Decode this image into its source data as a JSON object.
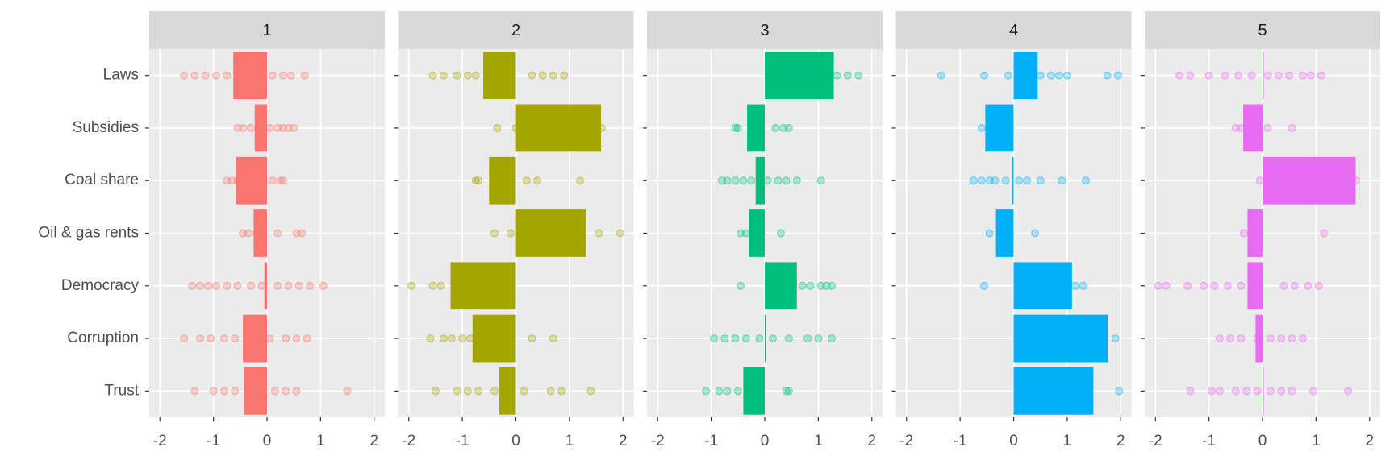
{
  "chart_data": [
    {
      "type": "bar",
      "title": "1",
      "color": "#F8766D",
      "categories": [
        "Laws",
        "Subsidies",
        "Coal share",
        "Oil & gas rents",
        "Democracy",
        "Corruption",
        "Trust"
      ],
      "values": [
        -0.63,
        -0.23,
        -0.58,
        -0.25,
        -0.05,
        -0.45,
        -0.43
      ],
      "points": [
        [
          -1.55,
          -1.35,
          -1.15,
          -0.95,
          -0.75,
          0.1,
          0.3,
          0.45,
          0.7
        ],
        [
          -0.55,
          -0.45,
          -0.3,
          0.05,
          0.2,
          0.3,
          0.4,
          0.5
        ],
        [
          -0.75,
          -0.65,
          -0.55,
          0.1,
          0.25,
          0.3
        ],
        [
          -0.45,
          -0.35,
          -0.2,
          0.2,
          0.55,
          0.65
        ],
        [
          -1.4,
          -1.25,
          -1.1,
          -0.95,
          -0.75,
          -0.55,
          -0.3,
          -0.1,
          0.2,
          0.4,
          0.6,
          0.8,
          1.05
        ],
        [
          -1.55,
          -1.25,
          -1.05,
          -0.8,
          -0.6,
          -0.3,
          0.05,
          0.35,
          0.55,
          0.75
        ],
        [
          -1.35,
          -1.0,
          -0.8,
          -0.6,
          -0.3,
          0.15,
          0.35,
          0.55,
          1.5
        ]
      ],
      "xlim": [
        -2.2,
        2.2
      ],
      "xticks": [
        -2,
        -1,
        0,
        1,
        2
      ],
      "grid": true
    },
    {
      "type": "bar",
      "title": "2",
      "color": "#A3A500",
      "categories": [
        "Laws",
        "Subsidies",
        "Coal share",
        "Oil & gas rents",
        "Democracy",
        "Corruption",
        "Trust"
      ],
      "values": [
        -0.61,
        1.59,
        -0.5,
        1.31,
        -1.22,
        -0.81,
        -0.31
      ],
      "points": [
        [
          -1.55,
          -1.35,
          -1.1,
          -0.9,
          -0.75,
          0.3,
          0.5,
          0.7,
          0.9
        ],
        [
          -0.35,
          0,
          1.6
        ],
        [
          -0.75,
          -0.7,
          0.2,
          0.4,
          1.2
        ],
        [
          -0.4,
          -0.1,
          1.55,
          1.95
        ],
        [
          -1.95,
          -1.55,
          -1.4
        ],
        [
          -1.6,
          -1.35,
          -1.2,
          -1.0,
          -0.85,
          0.3,
          0.7
        ],
        [
          -1.5,
          -1.1,
          -0.9,
          -0.7,
          -0.4,
          0.15,
          0.65,
          0.85,
          1.4
        ]
      ],
      "xlim": [
        -2.2,
        2.2
      ],
      "xticks": [
        -2,
        -1,
        0,
        1,
        2
      ],
      "grid": true
    },
    {
      "type": "bar",
      "title": "3",
      "color": "#00BF7D",
      "categories": [
        "Laws",
        "Subsidies",
        "Coal share",
        "Oil & gas rents",
        "Democracy",
        "Corruption",
        "Trust"
      ],
      "values": [
        1.29,
        -0.33,
        -0.17,
        -0.3,
        0.6,
        0.02,
        -0.4
      ],
      "points": [
        [
          1.35,
          1.55,
          1.75
        ],
        [
          -0.55,
          -0.5,
          0.2,
          0.35,
          0.45
        ],
        [
          -0.8,
          -0.7,
          -0.55,
          -0.4,
          -0.25,
          0.05,
          0.25,
          0.4,
          0.6,
          1.05
        ],
        [
          -0.45,
          -0.35,
          0.3
        ],
        [
          -0.45,
          0.7,
          0.85,
          1.05,
          1.15,
          1.25
        ],
        [
          -0.95,
          -0.75,
          -0.55,
          -0.35,
          -0.1,
          0.15,
          0.45,
          0.8,
          1.0,
          1.25
        ],
        [
          -1.1,
          -0.85,
          -0.7,
          -0.5,
          0.4,
          0.45
        ]
      ],
      "xlim": [
        -2.2,
        2.2
      ],
      "xticks": [
        -2,
        -1,
        0,
        1,
        2
      ],
      "grid": true
    },
    {
      "type": "bar",
      "title": "4",
      "color": "#00B0F6",
      "categories": [
        "Laws",
        "Subsidies",
        "Coal share",
        "Oil & gas rents",
        "Democracy",
        "Corruption",
        "Trust"
      ],
      "values": [
        0.45,
        -0.53,
        -0.03,
        -0.33,
        1.09,
        1.77,
        1.49
      ],
      "points": [
        [
          -1.35,
          -0.55,
          -0.1,
          0.5,
          0.7,
          0.85,
          1.0,
          1.75,
          1.95
        ],
        [
          -0.6
        ],
        [
          -0.75,
          -0.6,
          -0.45,
          -0.35,
          -0.15,
          0.1,
          0.25,
          0.5,
          0.9,
          1.35
        ],
        [
          -0.45,
          0.4
        ],
        [
          -0.55,
          1.15,
          1.3
        ],
        [
          1.9
        ],
        [
          1.97
        ]
      ],
      "xlim": [
        -2.2,
        2.2
      ],
      "xticks": [
        -2,
        -1,
        0,
        1,
        2
      ],
      "grid": true
    },
    {
      "type": "bar",
      "title": "5",
      "color": "#E76BF3",
      "categories": [
        "Laws",
        "Subsidies",
        "Coal share",
        "Oil & gas rents",
        "Democracy",
        "Corruption",
        "Trust"
      ],
      "values": [
        0.02,
        -0.36,
        1.74,
        -0.28,
        -0.28,
        -0.13,
        0.02
      ],
      "points": [
        [
          -1.55,
          -1.35,
          -1.0,
          -0.7,
          -0.45,
          -0.2,
          0.1,
          0.3,
          0.5,
          0.75,
          0.9,
          1.1
        ],
        [
          -0.5,
          -0.4,
          0.1,
          0.55
        ],
        [
          -0.05,
          1.75
        ],
        [
          -0.35,
          1.15
        ],
        [
          -1.95,
          -1.8,
          -1.4,
          -1.1,
          -0.9,
          -0.65,
          -0.4,
          0.4,
          0.6,
          0.85,
          1.05
        ],
        [
          -0.8,
          -0.6,
          -0.4,
          -0.1,
          0.15,
          0.35,
          0.55,
          0.75
        ],
        [
          -1.35,
          -0.95,
          -0.8,
          -0.5,
          -0.3,
          -0.1,
          0.15,
          0.35,
          0.55,
          0.95,
          1.6
        ]
      ],
      "xlim": [
        -2.2,
        2.2
      ],
      "xticks": [
        -2,
        -1,
        0,
        1,
        2
      ],
      "grid": true
    }
  ]
}
